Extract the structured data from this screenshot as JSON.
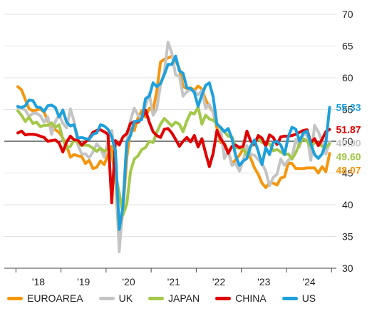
{
  "chart_data": {
    "type": "line",
    "title": "",
    "xlabel": "",
    "ylabel": "",
    "ylim": [
      30,
      70
    ],
    "yticks": [
      30,
      35,
      40,
      45,
      50,
      55,
      60,
      65,
      70
    ],
    "reference_line": 50,
    "grid": "horizontal",
    "legend_position": "bottom",
    "x_tick_labels": [
      "'18",
      "'19",
      "'20",
      "'21",
      "'22",
      "'23",
      "'24"
    ],
    "x_tick_years": [
      2018,
      2019,
      2020,
      2021,
      2022,
      2023,
      2024
    ],
    "series": [
      {
        "name": "EUROAREA",
        "color": "#f5960f",
        "end_label": "48.07",
        "start": "2018-01",
        "values": [
          58.6,
          58.1,
          56.6,
          55.1,
          54.8,
          54.9,
          55.1,
          54.6,
          53.2,
          52.0,
          51.8,
          51.4,
          50.5,
          49.3,
          47.5,
          47.9,
          47.7,
          47.6,
          46.5,
          47.0,
          45.7,
          45.9,
          46.9,
          46.3,
          47.9,
          49.2,
          44.5,
          33.4,
          39.4,
          47.4,
          51.8,
          51.7,
          53.7,
          54.8,
          53.8,
          55.2,
          54.8,
          57.9,
          62.5,
          62.9,
          63.1,
          63.4,
          62.8,
          61.4,
          58.6,
          58.3,
          58.4,
          58.0,
          58.7,
          58.2,
          56.5,
          55.5,
          54.6,
          52.1,
          49.8,
          49.6,
          48.4,
          46.4,
          47.1,
          47.8,
          48.8,
          48.5,
          47.3,
          45.8,
          44.8,
          43.4,
          42.7,
          43.5,
          43.4,
          43.1,
          44.2,
          44.4,
          46.6,
          46.5,
          45.7,
          45.7,
          45.7,
          45.8,
          45.8,
          45.8,
          45.0,
          46.0,
          45.2,
          48.07
        ]
      },
      {
        "name": "UK",
        "color": "#c4c4c4",
        "end_label": "49.90",
        "start": "2018-01",
        "values": [
          55.3,
          55.2,
          54.9,
          53.9,
          54.4,
          54.4,
          54.0,
          53.0,
          53.8,
          51.1,
          53.1,
          54.2,
          52.8,
          52.1,
          55.1,
          53.1,
          49.4,
          48.0,
          48.0,
          47.4,
          48.3,
          49.6,
          48.9,
          47.5,
          50.0,
          51.7,
          47.8,
          32.6,
          40.7,
          50.1,
          53.3,
          55.2,
          54.1,
          53.7,
          55.6,
          57.5,
          54.1,
          55.1,
          58.9,
          60.9,
          65.6,
          63.9,
          60.4,
          60.3,
          57.1,
          57.8,
          58.1,
          57.9,
          57.3,
          58.0,
          55.2,
          55.8,
          54.6,
          52.8,
          52.1,
          47.3,
          48.4,
          46.2,
          46.5,
          45.3,
          47.0,
          49.3,
          47.9,
          47.8,
          47.1,
          46.5,
          45.3,
          43.0,
          44.3,
          44.8,
          47.2,
          46.2,
          47.0,
          47.5,
          50.3,
          49.1,
          51.2,
          50.9,
          47.0,
          52.5,
          51.5,
          49.9,
          48.0,
          49.9
        ]
      },
      {
        "name": "JAPAN",
        "color": "#a3c84a",
        "end_label": "49.60",
        "start": "2018-01",
        "values": [
          54.8,
          54.1,
          53.1,
          53.8,
          52.8,
          53.0,
          52.3,
          52.5,
          52.5,
          52.9,
          52.2,
          52.6,
          50.3,
          48.9,
          49.2,
          50.2,
          49.8,
          49.3,
          49.4,
          49.3,
          48.9,
          48.4,
          48.9,
          48.4,
          48.8,
          47.8,
          44.8,
          41.9,
          38.4,
          40.1,
          45.2,
          47.2,
          47.7,
          48.7,
          49.0,
          50.0,
          49.8,
          51.4,
          52.7,
          53.6,
          53.0,
          52.4,
          53.0,
          52.7,
          51.5,
          53.2,
          54.5,
          54.3,
          55.4,
          52.7,
          54.1,
          53.5,
          53.3,
          52.7,
          52.1,
          51.5,
          50.8,
          50.7,
          49.0,
          48.9,
          48.9,
          47.7,
          49.2,
          49.5,
          50.6,
          49.8,
          49.6,
          49.6,
          48.5,
          48.7,
          48.3,
          47.9,
          48.0,
          47.2,
          48.2,
          49.6,
          50.4,
          50.0,
          49.1,
          49.8,
          49.7,
          49.2,
          49.0,
          49.6
        ]
      },
      {
        "name": "CHINA",
        "color": "#e00000",
        "end_label": "51.87",
        "start": "2018-01",
        "values": [
          51.3,
          51.6,
          51.0,
          51.1,
          51.1,
          51.0,
          50.8,
          50.6,
          50.0,
          50.1,
          50.2,
          49.7,
          48.3,
          49.9,
          50.8,
          50.2,
          50.2,
          49.4,
          49.9,
          50.4,
          51.4,
          51.7,
          51.8,
          51.5,
          51.1,
          40.3,
          50.1,
          49.4,
          50.7,
          51.2,
          52.8,
          53.1,
          53.0,
          53.6,
          54.9,
          53.0,
          51.5,
          50.9,
          50.6,
          51.9,
          52.0,
          51.3,
          50.3,
          49.2,
          50.0,
          50.6,
          49.9,
          50.9,
          49.1,
          50.4,
          48.1,
          46.0,
          48.1,
          51.7,
          50.4,
          49.5,
          48.1,
          49.2,
          49.4,
          49.0,
          49.2,
          51.6,
          50.0,
          49.5,
          50.9,
          50.5,
          49.2,
          51.0,
          50.6,
          49.5,
          50.7,
          50.8,
          50.8,
          50.9,
          51.1,
          51.4,
          51.7,
          51.8,
          49.8,
          50.4,
          49.3,
          50.3,
          51.5,
          51.87
        ]
      },
      {
        "name": "US",
        "color": "#1ea0dc",
        "end_label": "55.33",
        "start": "2018-01",
        "values": [
          55.5,
          55.3,
          55.6,
          56.5,
          56.4,
          55.4,
          55.3,
          54.7,
          55.6,
          55.7,
          55.3,
          53.8,
          54.9,
          53.0,
          52.4,
          52.6,
          50.5,
          50.6,
          50.4,
          50.3,
          51.1,
          51.3,
          52.6,
          52.4,
          51.9,
          50.7,
          48.5,
          36.1,
          39.8,
          49.8,
          50.9,
          53.1,
          53.2,
          53.4,
          56.7,
          57.1,
          59.2,
          58.6,
          59.1,
          60.5,
          62.1,
          62.1,
          63.4,
          61.1,
          60.7,
          58.4,
          58.3,
          57.7,
          55.5,
          57.3,
          58.8,
          59.2,
          57.0,
          52.7,
          52.2,
          51.5,
          52.0,
          50.4,
          47.7,
          46.2,
          46.9,
          47.3,
          49.2,
          50.2,
          48.4,
          46.3,
          49.0,
          47.9,
          49.8,
          50.0,
          49.4,
          47.9,
          50.7,
          52.2,
          51.9,
          50.0,
          51.3,
          51.6,
          49.6,
          47.9,
          47.3,
          48.0,
          49.7,
          55.33
        ]
      }
    ]
  }
}
